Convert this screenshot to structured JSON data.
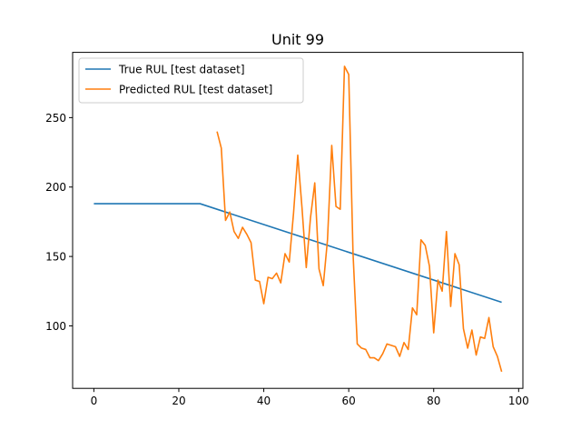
{
  "chart_data": {
    "type": "line",
    "title": "Unit 99",
    "xlabel": "",
    "ylabel": "",
    "xlim": [
      -5,
      101
    ],
    "ylim": [
      55,
      297
    ],
    "xticks": [
      0,
      20,
      40,
      60,
      80,
      100
    ],
    "yticks": [
      100,
      150,
      200,
      250
    ],
    "grid": false,
    "legend_position": "upper-left",
    "series": [
      {
        "name": "True RUL [test dataset]",
        "color": "#1f77b4",
        "x": [
          0,
          25,
          96
        ],
        "y": [
          188,
          188,
          117
        ]
      },
      {
        "name": "Predicted RUL [test dataset]",
        "color": "#ff7f0e",
        "x": [
          29,
          30,
          31,
          32,
          33,
          34,
          35,
          36,
          37,
          38,
          39,
          40,
          41,
          42,
          43,
          44,
          45,
          46,
          47,
          48,
          49,
          50,
          51,
          52,
          53,
          54,
          55,
          56,
          57,
          58,
          59,
          60,
          61,
          62,
          63,
          64,
          65,
          66,
          67,
          68,
          69,
          70,
          71,
          72,
          73,
          74,
          75,
          76,
          77,
          78,
          79,
          80,
          81,
          82,
          83,
          84,
          85,
          86,
          87,
          88,
          89,
          90,
          91,
          92,
          93,
          94,
          95,
          96
        ],
        "y": [
          240,
          228,
          176,
          182,
          168,
          163,
          171,
          166,
          160,
          133,
          132,
          116,
          135,
          134,
          138,
          131,
          152,
          146,
          181,
          223,
          185,
          142,
          178,
          203,
          141,
          129,
          162,
          230,
          186,
          184,
          287,
          281,
          153,
          87,
          84,
          83,
          77,
          77,
          75,
          80,
          87,
          86,
          85,
          78,
          88,
          83,
          113,
          108,
          162,
          158,
          143,
          95,
          133,
          125,
          168,
          114,
          152,
          144,
          98,
          84,
          97,
          79,
          92,
          91,
          106,
          85,
          78,
          67
        ]
      }
    ]
  }
}
